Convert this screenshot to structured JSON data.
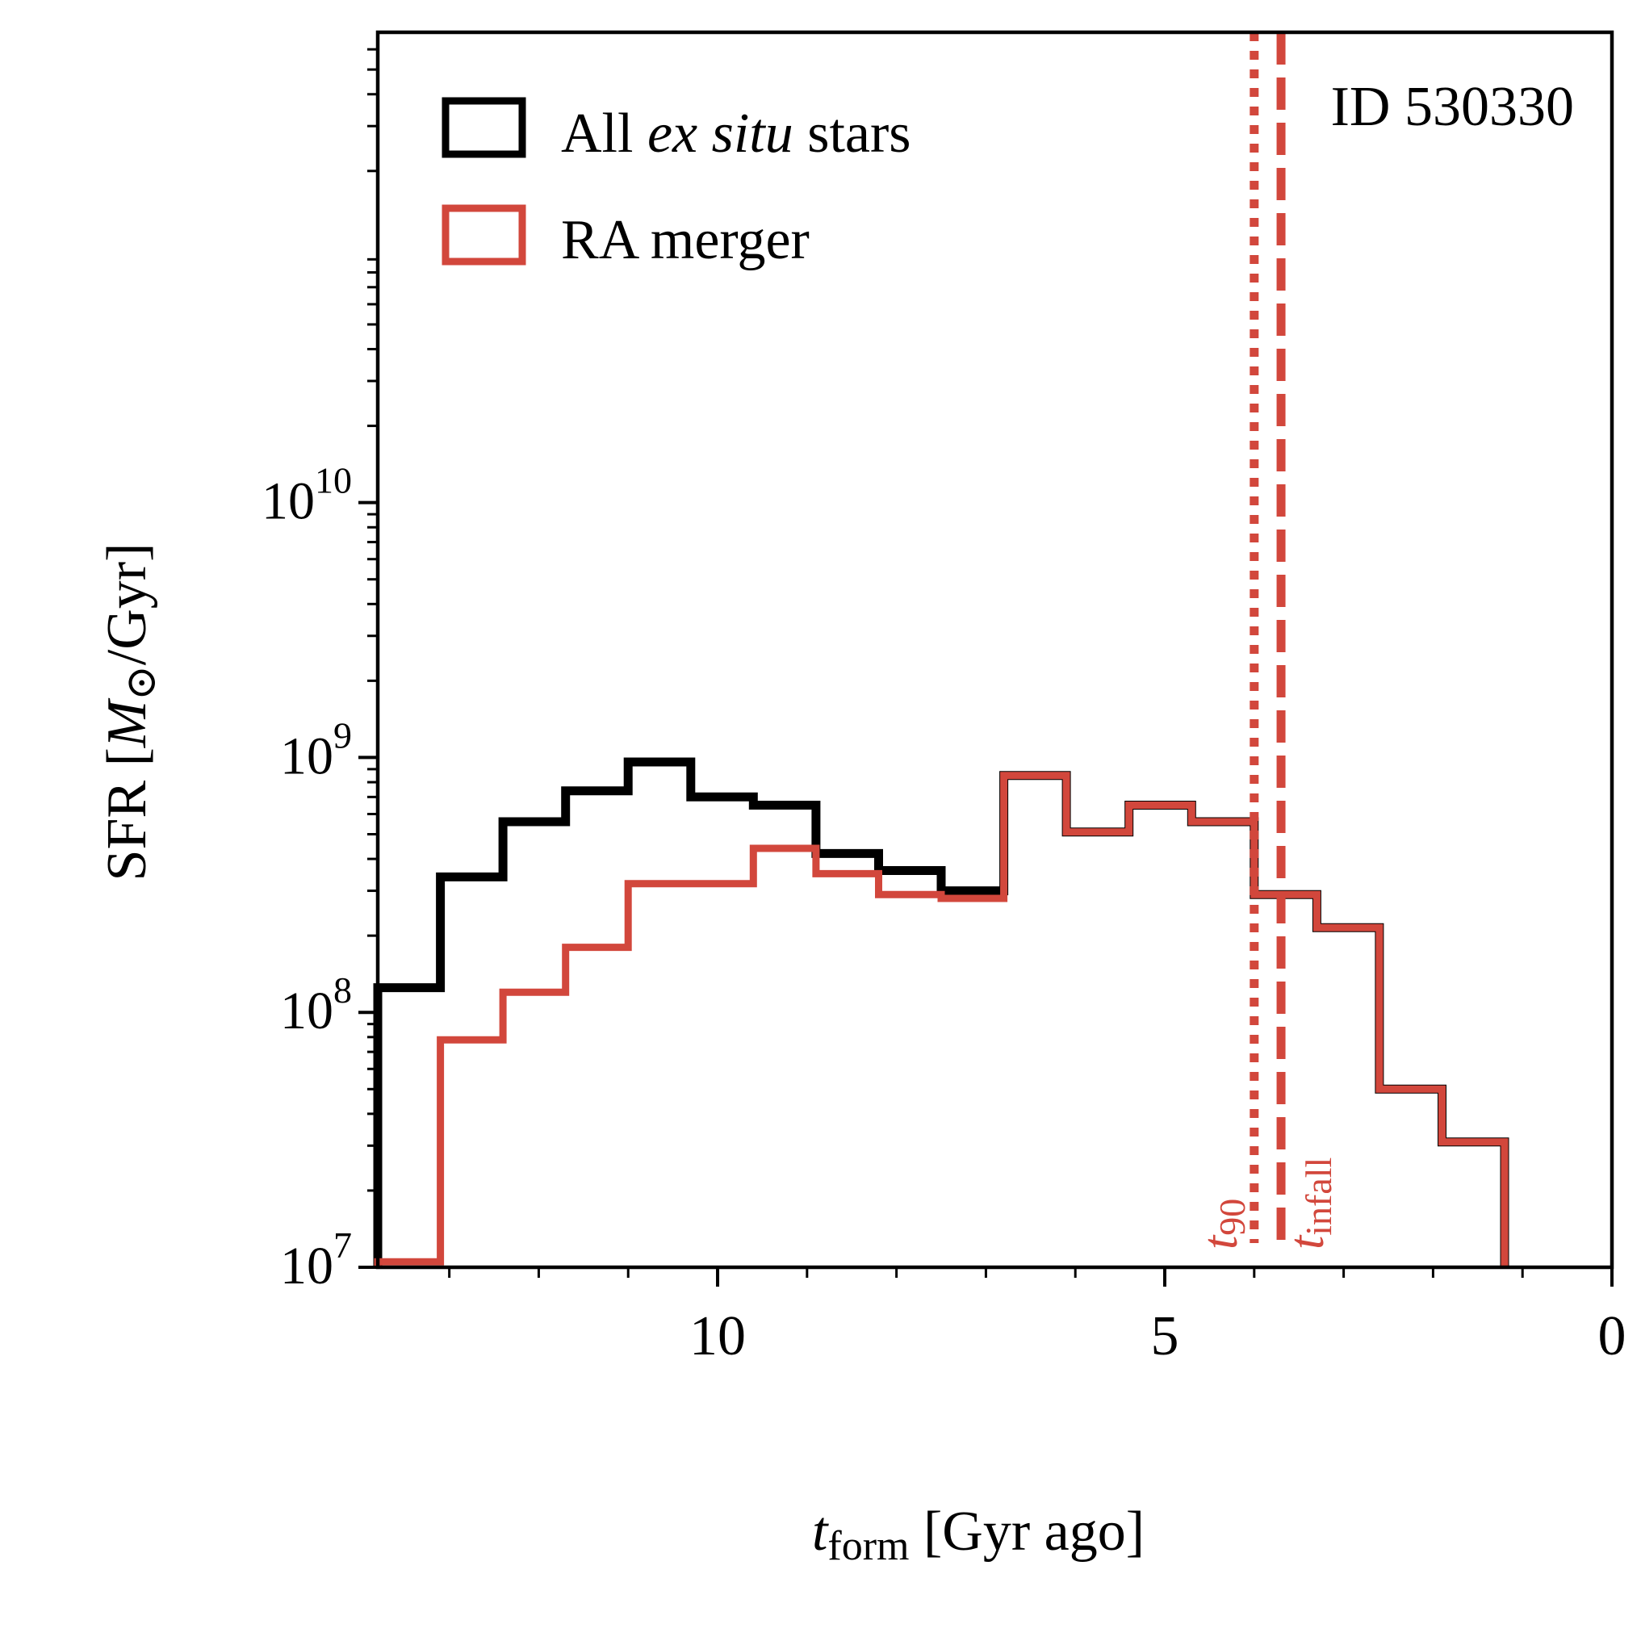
{
  "chart_data": {
    "type": "step",
    "title": "",
    "annotation": "ID 530330",
    "xlabel": {
      "main": "t",
      "sub": "form",
      "rest": " [Gyr ago]"
    },
    "ylabel": {
      "pre": "SFR [",
      "italic": "M",
      "sun": "⊙",
      "post": "/Gyr]"
    },
    "xlim": [
      13.8,
      0
    ],
    "ylim": [
      10000000,
      700000000000
    ],
    "yscale": "log",
    "x_ticks": [
      {
        "value": 10,
        "label": "10"
      },
      {
        "value": 5,
        "label": "5"
      },
      {
        "value": 0,
        "label": "0"
      }
    ],
    "x_minor_ticks": [
      13,
      12,
      11,
      9,
      8,
      7,
      6,
      4,
      3,
      2,
      1
    ],
    "y_ticks": [
      {
        "value": 10000000,
        "base": "10",
        "exp": "7"
      },
      {
        "value": 100000000,
        "base": "10",
        "exp": "8"
      },
      {
        "value": 1000000000,
        "base": "10",
        "exp": "9"
      },
      {
        "value": 10000000000,
        "base": "10",
        "exp": "10"
      }
    ],
    "bin_edges": [
      13.8,
      13.1,
      12.4,
      11.7,
      11.0,
      10.3,
      9.6,
      8.9,
      8.2,
      7.5,
      6.8,
      6.1,
      5.4,
      4.7,
      4.0,
      3.3,
      2.6,
      1.9,
      1.2,
      0.5,
      0.0
    ],
    "series": [
      {
        "name": "All ex situ stars",
        "color": "#000000",
        "values": [
          125000000,
          340000000,
          560000000,
          740000000,
          960000000,
          700000000,
          650000000,
          420000000,
          360000000,
          300000000,
          850000000,
          510000000,
          650000000,
          560000000,
          290000000,
          215000000,
          50000000,
          31000000,
          0,
          0
        ]
      },
      {
        "name": "RA merger",
        "color": "#d2473c",
        "values": [
          10500000,
          78000000,
          120000000,
          180000000,
          320000000,
          320000000,
          440000000,
          350000000,
          290000000,
          280000000,
          850000000,
          510000000,
          650000000,
          560000000,
          290000000,
          215000000,
          50000000,
          31000000,
          0,
          0
        ]
      }
    ],
    "legend": {
      "position": "top-left",
      "entries": [
        {
          "pre": "All ",
          "italic": "ex situ",
          "post": " stars",
          "color": "#000000"
        },
        {
          "pre": "RA merger",
          "italic": "",
          "post": "",
          "color": "#d2473c"
        }
      ]
    },
    "vlines": [
      {
        "x": 4.0,
        "style": "dotted",
        "color": "#d2473c",
        "label_main": "t",
        "label_sub": "90"
      },
      {
        "x": 3.7,
        "style": "dashed",
        "color": "#d2473c",
        "label_main": "t",
        "label_sub": "infall"
      }
    ]
  }
}
